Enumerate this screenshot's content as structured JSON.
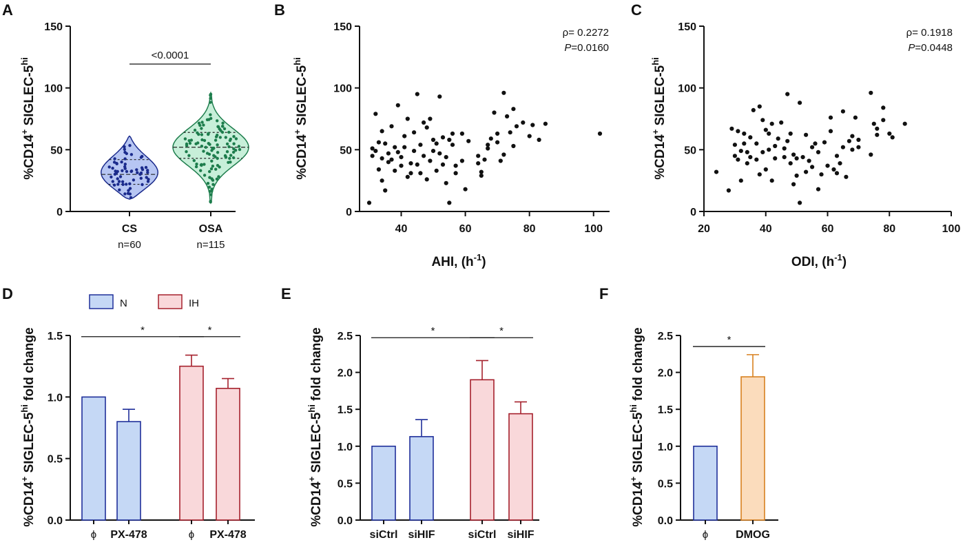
{
  "colors": {
    "cs_fill": "#b7c6f3",
    "cs_edge": "#1a2a8c",
    "cs_dot": "#1a2a8c",
    "osa_fill": "#c7efd9",
    "osa_edge": "#1d7d4c",
    "osa_dot": "#1d7d4c",
    "n_fill": "#c5d8f5",
    "n_edge": "#1f2f9a",
    "ih_fill": "#f9d8da",
    "ih_edge": "#a5202c",
    "dmog_fill": "#fbdcbc",
    "dmog_edge": "#d8801f"
  },
  "chart_data": [
    {
      "panel": "A",
      "type": "violin",
      "ylabel": "%CD14+ SIGLEC-5hi",
      "ylabel_main": "%CD14",
      "ylabel_sup1": "+",
      "ylabel_mid": " SIGLEC-5",
      "ylabel_sup2": "hi",
      "ylim": [
        0,
        150
      ],
      "yticks": [
        0,
        50,
        100,
        150
      ],
      "groups": [
        {
          "name": "CS",
          "n_label": "n=60",
          "min": 10,
          "q1": 22,
          "median": 30,
          "q3": 42,
          "max": 61
        },
        {
          "name": "OSA",
          "n_label": "n=115",
          "min": 7,
          "q1": 43,
          "median": 52,
          "q3": 64,
          "max": 96
        }
      ],
      "comparison": {
        "from": "CS",
        "to": "OSA",
        "label": "<0.0001"
      }
    },
    {
      "panel": "B",
      "type": "scatter",
      "xlabel": "AHI, (h-1)",
      "xlabel_main": "AHI, (h",
      "xlabel_sup": "-1",
      "xlabel_end": ")",
      "ylabel_main": "%CD14",
      "ylabel_sup1": "+",
      "ylabel_mid": " SIGLEC-5",
      "ylabel_sup2": "hi",
      "xlim": [
        27,
        105
      ],
      "xticks": [
        40,
        60,
        80,
        100
      ],
      "ylim": [
        0,
        150
      ],
      "yticks": [
        0,
        50,
        100,
        150
      ],
      "stat_rho": "ρ= 0.2272",
      "stat_p_label": "P",
      "stat_p_value": "=0.0160",
      "points": [
        [
          30,
          7
        ],
        [
          31,
          45
        ],
        [
          31,
          51
        ],
        [
          32,
          79
        ],
        [
          32,
          49
        ],
        [
          33,
          34
        ],
        [
          33,
          56
        ],
        [
          34,
          65
        ],
        [
          34,
          25
        ],
        [
          34,
          43
        ],
        [
          35,
          17
        ],
        [
          35,
          55
        ],
        [
          36,
          47
        ],
        [
          36,
          40
        ],
        [
          37,
          42
        ],
        [
          37,
          69
        ],
        [
          38,
          33
        ],
        [
          38,
          52
        ],
        [
          39,
          86
        ],
        [
          39,
          48
        ],
        [
          40,
          37
        ],
        [
          40,
          44
        ],
        [
          41,
          61
        ],
        [
          41,
          52
        ],
        [
          42,
          75
        ],
        [
          42,
          28
        ],
        [
          43,
          31
        ],
        [
          43,
          39
        ],
        [
          44,
          49
        ],
        [
          44,
          64
        ],
        [
          45,
          38
        ],
        [
          45,
          95
        ],
        [
          46,
          54
        ],
        [
          46,
          31
        ],
        [
          47,
          72
        ],
        [
          47,
          45
        ],
        [
          48,
          68
        ],
        [
          48,
          26
        ],
        [
          49,
          41
        ],
        [
          49,
          75
        ],
        [
          50,
          49
        ],
        [
          50,
          58
        ],
        [
          51,
          33
        ],
        [
          51,
          55
        ],
        [
          52,
          93
        ],
        [
          52,
          47
        ],
        [
          53,
          38
        ],
        [
          53,
          60
        ],
        [
          54,
          23
        ],
        [
          54,
          44
        ],
        [
          55,
          58
        ],
        [
          55,
          7
        ],
        [
          56,
          54
        ],
        [
          56,
          63
        ],
        [
          57,
          37
        ],
        [
          57,
          31
        ],
        [
          59,
          63
        ],
        [
          59,
          41
        ],
        [
          60,
          18
        ],
        [
          61,
          57
        ],
        [
          64,
          45
        ],
        [
          64,
          39
        ],
        [
          65,
          32
        ],
        [
          65,
          29
        ],
        [
          66,
          42
        ],
        [
          67,
          54
        ],
        [
          67,
          51
        ],
        [
          68,
          59
        ],
        [
          69,
          80
        ],
        [
          70,
          63
        ],
        [
          70,
          56
        ],
        [
          71,
          41
        ],
        [
          72,
          96
        ],
        [
          72,
          46
        ],
        [
          73,
          77
        ],
        [
          74,
          64
        ],
        [
          75,
          83
        ],
        [
          75,
          53
        ],
        [
          76,
          69
        ],
        [
          78,
          72
        ],
        [
          80,
          61
        ],
        [
          81,
          70
        ],
        [
          83,
          58
        ],
        [
          85,
          71
        ],
        [
          102,
          63
        ]
      ]
    },
    {
      "panel": "C",
      "type": "scatter",
      "xlabel": "ODI, (h-1)",
      "xlabel_main": "ODI, (h",
      "xlabel_sup": "-1",
      "xlabel_end": ")",
      "ylabel_main": "%CD14",
      "ylabel_sup1": "+",
      "ylabel_mid": " SIGLEC-5",
      "ylabel_sup2": "hi",
      "xlim": [
        20,
        100
      ],
      "xticks": [
        20,
        40,
        60,
        80,
        100
      ],
      "ylim": [
        0,
        150
      ],
      "yticks": [
        0,
        50,
        100,
        150
      ],
      "stat_rho": "ρ= 0.1918",
      "stat_p_label": "P",
      "stat_p_value": "=0.0448",
      "points": [
        [
          24,
          32
        ],
        [
          28,
          17
        ],
        [
          29,
          67
        ],
        [
          30,
          45
        ],
        [
          30,
          54
        ],
        [
          31,
          65
        ],
        [
          31,
          42
        ],
        [
          32,
          25
        ],
        [
          32,
          49
        ],
        [
          33,
          55
        ],
        [
          33,
          63
        ],
        [
          34,
          39
        ],
        [
          34,
          48
        ],
        [
          35,
          60
        ],
        [
          35,
          44
        ],
        [
          36,
          82
        ],
        [
          37,
          42
        ],
        [
          37,
          55
        ],
        [
          38,
          85
        ],
        [
          38,
          30
        ],
        [
          39,
          48
        ],
        [
          39,
          74
        ],
        [
          40,
          66
        ],
        [
          40,
          34
        ],
        [
          41,
          63
        ],
        [
          41,
          50
        ],
        [
          42,
          71
        ],
        [
          42,
          25
        ],
        [
          43,
          43
        ],
        [
          43,
          53
        ],
        [
          44,
          59
        ],
        [
          45,
          72
        ],
        [
          46,
          51
        ],
        [
          46,
          44
        ],
        [
          47,
          95
        ],
        [
          47,
          57
        ],
        [
          48,
          63
        ],
        [
          48,
          39
        ],
        [
          49,
          46
        ],
        [
          49,
          22
        ],
        [
          50,
          29
        ],
        [
          50,
          43
        ],
        [
          51,
          88
        ],
        [
          51,
          7
        ],
        [
          52,
          44
        ],
        [
          53,
          32
        ],
        [
          53,
          62
        ],
        [
          54,
          41
        ],
        [
          55,
          52
        ],
        [
          55,
          36
        ],
        [
          56,
          55
        ],
        [
          57,
          18
        ],
        [
          57,
          48
        ],
        [
          58,
          30
        ],
        [
          59,
          56
        ],
        [
          60,
          37
        ],
        [
          61,
          76
        ],
        [
          61,
          65
        ],
        [
          62,
          34
        ],
        [
          63,
          31
        ],
        [
          63,
          45
        ],
        [
          64,
          39
        ],
        [
          65,
          52
        ],
        [
          65,
          81
        ],
        [
          66,
          28
        ],
        [
          67,
          57
        ],
        [
          68,
          50
        ],
        [
          68,
          61
        ],
        [
          69,
          76
        ],
        [
          70,
          52
        ],
        [
          70,
          58
        ],
        [
          74,
          46
        ],
        [
          74,
          96
        ],
        [
          75,
          71
        ],
        [
          76,
          62
        ],
        [
          76,
          67
        ],
        [
          78,
          84
        ],
        [
          78,
          74
        ],
        [
          80,
          63
        ],
        [
          81,
          60
        ],
        [
          85,
          71
        ]
      ]
    },
    {
      "panel": "D",
      "type": "bar",
      "ylabel_main": "%CD14",
      "ylabel_sup1": "+",
      "ylabel_mid": " SIGLEC-5",
      "ylabel_sup2": "hi",
      "ylabel_end": " fold change",
      "ylim": [
        0,
        1.5
      ],
      "yticks": [
        "0.0",
        "0.5",
        "1.0",
        "1.5"
      ],
      "legend": [
        {
          "name": "N"
        },
        {
          "name": "IH"
        }
      ],
      "bars": [
        {
          "label": "ϕ",
          "group": "N",
          "value": 1.0,
          "err": 0
        },
        {
          "label": "PX-478",
          "group": "N",
          "value": 0.8,
          "err": 0.1
        },
        {
          "label": "ϕ",
          "group": "IH",
          "value": 1.25,
          "err": 0.09
        },
        {
          "label": "PX-478",
          "group": "IH",
          "value": 1.07,
          "err": 0.08
        }
      ],
      "comparisons": [
        {
          "from": 0,
          "to": 2,
          "label": "*",
          "y": 1.49
        },
        {
          "from": 2,
          "to": 3,
          "label": "*",
          "y": 1.49
        }
      ]
    },
    {
      "panel": "E",
      "type": "bar",
      "ylabel_main": "%CD14",
      "ylabel_sup1": "+",
      "ylabel_mid": " SIGLEC-5",
      "ylabel_sup2": "hi",
      "ylabel_end": " fold change",
      "ylim": [
        0,
        2.5
      ],
      "yticks": [
        "0.0",
        "0.5",
        "1.0",
        "1.5",
        "2.0",
        "2.5"
      ],
      "bars": [
        {
          "label": "siCtrl",
          "group": "N",
          "value": 1.0,
          "err": 0
        },
        {
          "label": "siHIF",
          "group": "N",
          "value": 1.13,
          "err": 0.23
        },
        {
          "label": "siCtrl",
          "group": "IH",
          "value": 1.9,
          "err": 0.26
        },
        {
          "label": "siHIF",
          "group": "IH",
          "value": 1.44,
          "err": 0.16
        }
      ],
      "comparisons": [
        {
          "from": 0,
          "to": 2,
          "label": "*",
          "y": 2.47
        },
        {
          "from": 2,
          "to": 3,
          "label": "*",
          "y": 2.47
        }
      ]
    },
    {
      "panel": "F",
      "type": "bar",
      "ylabel_main": "%CD14",
      "ylabel_sup1": "+",
      "ylabel_mid": " SIGLEC-5",
      "ylabel_sup2": "hi",
      "ylabel_end": " fold change",
      "ylim": [
        0,
        2.5
      ],
      "yticks": [
        "0.0",
        "0.5",
        "1.0",
        "1.5",
        "2.0",
        "2.5"
      ],
      "bars": [
        {
          "label": "ϕ",
          "group": "N",
          "value": 1.0,
          "err": 0
        },
        {
          "label": "DMOG",
          "group": "DMOG",
          "value": 1.94,
          "err": 0.3
        }
      ],
      "comparisons": [
        {
          "from": 0,
          "to": 1,
          "label": "*",
          "y": 2.35
        }
      ]
    }
  ]
}
